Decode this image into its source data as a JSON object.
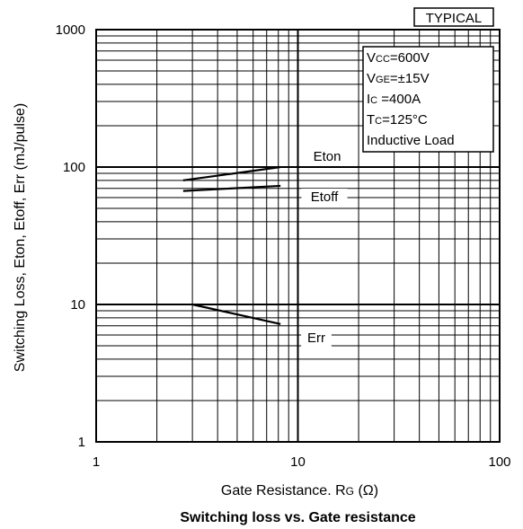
{
  "chart_data": {
    "type": "line",
    "title": "Switching loss vs. Gate resistance",
    "badge": "TYPICAL",
    "xlabel": {
      "main": "Gate Resistance. R",
      "sub": "G",
      "unit": " (Ω)"
    },
    "ylabel": "Switching Loss, Eton, Etoff, Err (mJ/pulse)",
    "x_scale": "log",
    "y_scale": "log",
    "xlim": [
      1,
      100
    ],
    "ylim": [
      1,
      1000
    ],
    "x_ticks": [
      {
        "value": 1,
        "label": "1"
      },
      {
        "value": 10,
        "label": "10"
      },
      {
        "value": 100,
        "label": "100"
      }
    ],
    "y_ticks": [
      {
        "value": 1,
        "label": "1"
      },
      {
        "value": 10,
        "label": "10"
      },
      {
        "value": 100,
        "label": "100"
      },
      {
        "value": 1000,
        "label": "1000"
      }
    ],
    "grid": true,
    "conditions": [
      {
        "main": "V",
        "sub": "CC",
        "rest": "=600V"
      },
      {
        "main": "V",
        "sub": "GE",
        "rest": "=±15V"
      },
      {
        "main": "I",
        "sub": "C",
        "rest": " =400A"
      },
      {
        "main": "T",
        "sub": "C",
        "rest": "=125°C"
      },
      {
        "main": "Inductive Load",
        "sub": "",
        "rest": ""
      }
    ],
    "series": [
      {
        "name": "Eton",
        "x": [
          2.7,
          8.2
        ],
        "y": [
          80,
          100
        ]
      },
      {
        "name": "Etoff",
        "x": [
          2.7,
          8.2
        ],
        "y": [
          67,
          73
        ]
      },
      {
        "name": "Err",
        "x": [
          3.0,
          8.2
        ],
        "y": [
          10,
          7.2
        ]
      }
    ]
  }
}
